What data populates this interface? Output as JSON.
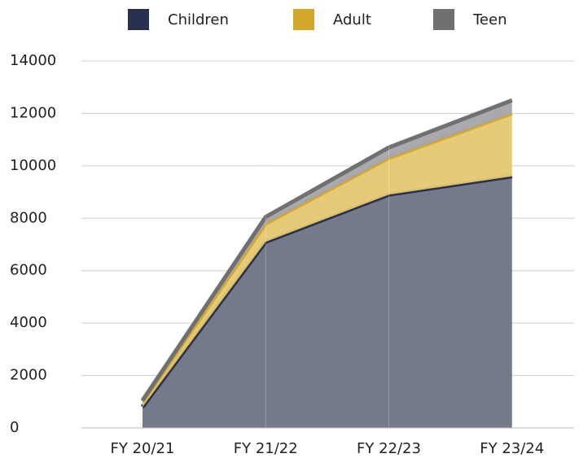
{
  "chart_data": {
    "type": "stacked-area",
    "categories": [
      "FY 20/21",
      "FY 21/22",
      "FY 22/23",
      "FY 23/24"
    ],
    "series": [
      {
        "name": "Children",
        "color": "#283050",
        "fill": "#6e7385",
        "values": [
          800,
          7100,
          8900,
          9600
        ]
      },
      {
        "name": "Adult",
        "color": "#d4a82a",
        "fill": "#e4c870",
        "values": [
          200,
          700,
          1400,
          2400
        ]
      },
      {
        "name": "Teen",
        "color": "#707070",
        "fill": "#a4a4ac",
        "values": [
          50,
          250,
          400,
          500
        ]
      }
    ],
    "ylim": [
      0,
      14000
    ],
    "yticks": [
      0,
      2000,
      4000,
      6000,
      8000,
      10000,
      12000,
      14000
    ],
    "grid": true
  }
}
